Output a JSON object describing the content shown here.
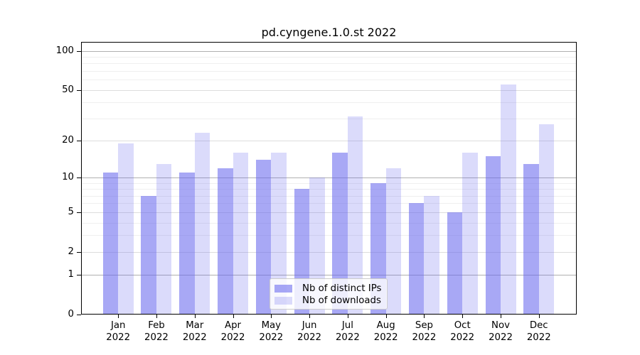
{
  "chart_data": {
    "type": "bar",
    "title": "pd.cyngene.1.0.st 2022",
    "categories": [
      "Jan",
      "Feb",
      "Mar",
      "Apr",
      "May",
      "Jun",
      "Jul",
      "Aug",
      "Sep",
      "Oct",
      "Nov",
      "Dec"
    ],
    "x_tick_second_line": "2022",
    "series": [
      {
        "name": "Nb of distinct IPs",
        "color": "rgba(102,102,238,0.57)",
        "color_on_white": "#a9a9f6",
        "values": [
          11,
          7,
          11,
          12,
          14,
          8,
          16,
          9,
          6,
          5,
          15,
          13
        ]
      },
      {
        "name": "Nb of downloads",
        "color": "rgba(102,102,238,0.235)",
        "color_on_white": "#dcdcf9",
        "values": [
          19,
          13,
          23,
          16,
          16,
          10,
          31,
          12,
          7,
          16,
          55,
          27
        ]
      }
    ],
    "y_axis": {
      "scale": "log10(value+1)",
      "labeled_ticks": [
        0,
        1,
        2,
        5,
        10,
        20,
        50,
        100
      ],
      "major_gridlines": [
        1,
        10,
        100
      ],
      "labeled_minor_gridlines": [
        2,
        5,
        20,
        50
      ],
      "unlabeled_minor_gridlines": [
        3,
        4,
        6,
        7,
        8,
        9,
        30,
        40,
        60,
        70,
        80,
        90
      ],
      "range": [
        0,
        117
      ]
    },
    "legend": {
      "position": "lower-center"
    },
    "grid": true,
    "colors": {
      "background": "#ffffff",
      "axis": "#000000",
      "grid_major": "#b0b0b0",
      "grid_labeled_minor": "#dddddd",
      "grid_minor": "#efefef",
      "bar_base": "#6666ee"
    }
  }
}
